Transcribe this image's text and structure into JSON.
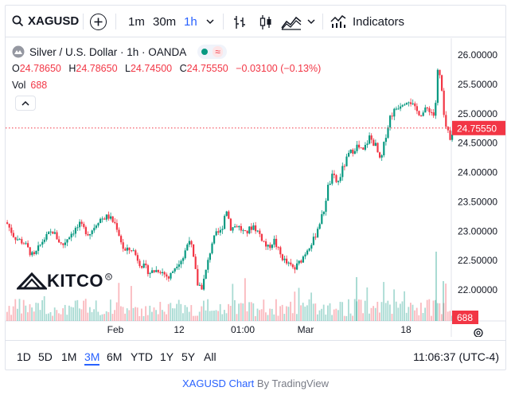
{
  "toolbar": {
    "symbol": "XAGUSD",
    "intervals": [
      "1m",
      "30m",
      "1h"
    ],
    "active_interval": "1h",
    "indicators_label": "Indicators"
  },
  "legend": {
    "title": "Silver / U.S. Dollar · 1h · OANDA",
    "open_label": "O",
    "open": "24.78650",
    "high_label": "H",
    "high": "24.78650",
    "low_label": "L",
    "low": "24.74500",
    "close_label": "C",
    "close": "24.75550",
    "change": "−0.03100 (−0.13%)",
    "vol_label": "Vol",
    "vol_value": "688"
  },
  "logo": {
    "text": "KITCO"
  },
  "bottom": {
    "ranges": [
      "1D",
      "5D",
      "1M",
      "3M",
      "6M",
      "YTD",
      "1Y",
      "5Y",
      "All"
    ],
    "active_range": "3M",
    "clock": "11:06:37 (UTC-4)"
  },
  "attribution": {
    "chart": "XAGUSD Chart",
    "by": " By TradingView"
  },
  "colors": {
    "up": "#089981",
    "down": "#f23645",
    "accent": "#2962ff"
  },
  "chart_data": {
    "type": "candlestick",
    "title": "Silver / U.S. Dollar · 1h · OANDA",
    "y_ticks": [
      "26.00000",
      "25.50000",
      "25.00000",
      "24.50000",
      "24.00000",
      "23.50000",
      "23.00000",
      "22.50000",
      "22.00000"
    ],
    "y_tick_values": [
      26.0,
      25.5,
      25.0,
      24.5,
      24.0,
      23.5,
      23.0,
      22.5,
      22.0
    ],
    "ylim": [
      21.55,
      26.3
    ],
    "x_ticks": [
      "Feb",
      "12",
      "01:00",
      "Mar",
      "18"
    ],
    "last_price_label": "24.75550",
    "last_price": 24.7555,
    "last_volume_label": "688",
    "price_path": [
      [
        0,
        23.15
      ],
      [
        10,
        22.9
      ],
      [
        22,
        22.8
      ],
      [
        34,
        22.55
      ],
      [
        46,
        22.85
      ],
      [
        58,
        23.0
      ],
      [
        70,
        22.75
      ],
      [
        80,
        22.95
      ],
      [
        92,
        23.1
      ],
      [
        104,
        22.95
      ],
      [
        116,
        23.2
      ],
      [
        128,
        23.25
      ],
      [
        138,
        23.1
      ],
      [
        148,
        22.65
      ],
      [
        158,
        22.7
      ],
      [
        168,
        22.45
      ],
      [
        180,
        22.3
      ],
      [
        192,
        22.35
      ],
      [
        204,
        22.2
      ],
      [
        214,
        22.45
      ],
      [
        222,
        22.55
      ],
      [
        230,
        22.9
      ],
      [
        236,
        22.45
      ],
      [
        240,
        22.1
      ],
      [
        246,
        22.05
      ],
      [
        252,
        22.4
      ],
      [
        258,
        22.8
      ],
      [
        264,
        22.95
      ],
      [
        270,
        23.0
      ],
      [
        276,
        23.4
      ],
      [
        282,
        23.05
      ],
      [
        290,
        23.1
      ],
      [
        300,
        22.95
      ],
      [
        310,
        23.1
      ],
      [
        318,
        22.95
      ],
      [
        328,
        22.7
      ],
      [
        336,
        22.85
      ],
      [
        344,
        22.6
      ],
      [
        352,
        22.45
      ],
      [
        362,
        22.35
      ],
      [
        372,
        22.55
      ],
      [
        380,
        22.75
      ],
      [
        386,
        22.85
      ],
      [
        392,
        23.1
      ],
      [
        398,
        23.3
      ],
      [
        404,
        23.75
      ],
      [
        410,
        23.95
      ],
      [
        416,
        23.8
      ],
      [
        422,
        24.05
      ],
      [
        430,
        24.3
      ],
      [
        440,
        24.45
      ],
      [
        448,
        24.35
      ],
      [
        456,
        24.6
      ],
      [
        464,
        24.45
      ],
      [
        470,
        24.15
      ],
      [
        476,
        24.6
      ],
      [
        482,
        24.95
      ],
      [
        490,
        25.1
      ],
      [
        498,
        25.2
      ],
      [
        506,
        25.25
      ],
      [
        514,
        25.05
      ],
      [
        522,
        25.0
      ],
      [
        530,
        25.1
      ],
      [
        538,
        24.95
      ],
      [
        542,
        25.75
      ],
      [
        546,
        25.55
      ],
      [
        550,
        24.85
      ],
      [
        554,
        24.7
      ],
      [
        558,
        24.5
      ],
      [
        562,
        24.76
      ]
    ]
  }
}
